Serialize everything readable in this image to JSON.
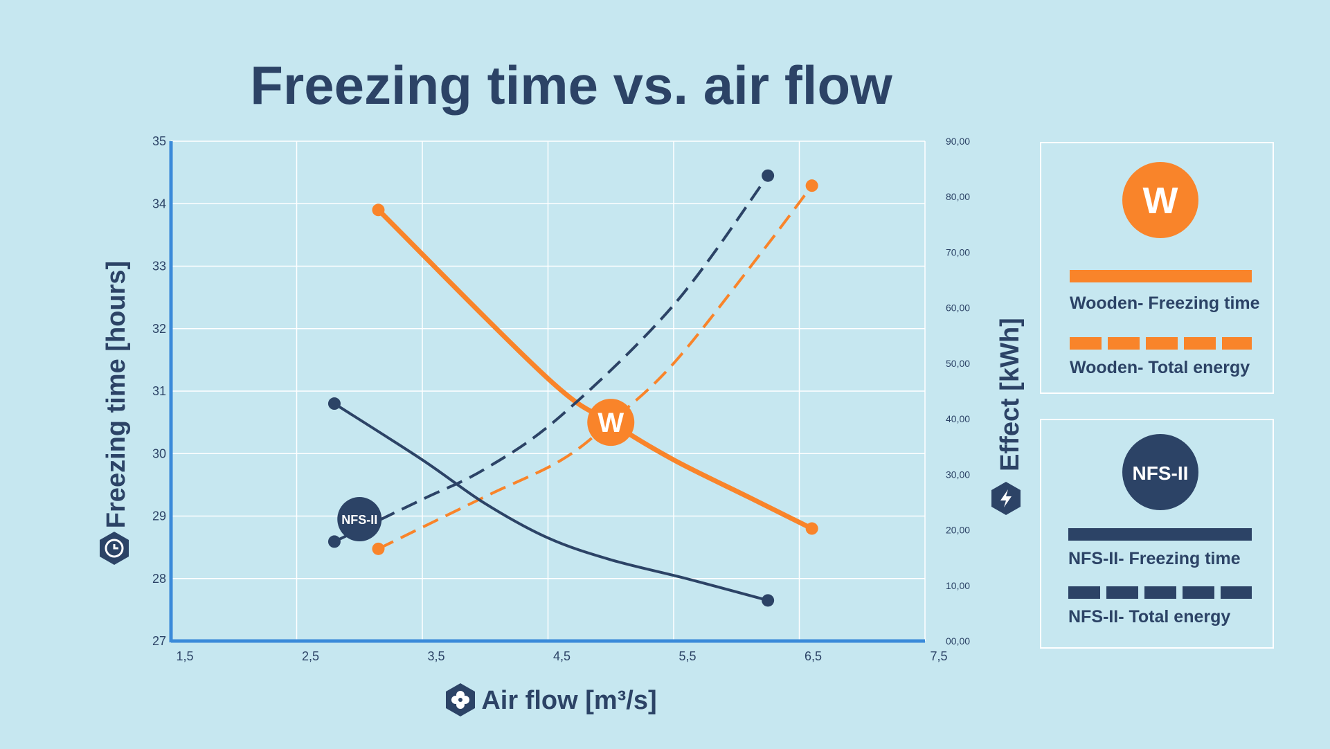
{
  "colors": {
    "background": "#c6e7f0",
    "navy": "#2c4366",
    "orange": "#f9842a",
    "axis_blue": "#3a8ad9",
    "grid": "#ffffff"
  },
  "chart_data": {
    "type": "line",
    "title": "Freezing time vs. air flow",
    "xlabel": "Air flow [m³/s]",
    "ylabel_left": "Freezing time [hours]",
    "ylabel_right": "Effect [kWh]",
    "xlim": [
      1.5,
      7.5
    ],
    "ylim_left": [
      27,
      35
    ],
    "ylim_right": [
      0,
      90
    ],
    "x_ticks": [
      "1,5",
      "2,5",
      "3,5",
      "4,5",
      "5,5",
      "6,5",
      "7,5"
    ],
    "y_left_ticks": [
      "27",
      "28",
      "29",
      "30",
      "31",
      "32",
      "33",
      "34",
      "35"
    ],
    "y_right_ticks": [
      "00,00",
      "10,00",
      "20,00",
      "30,00",
      "40,00",
      "50,00",
      "60,00",
      "70,00",
      "80,00",
      "90,00"
    ],
    "grid": true,
    "series": [
      {
        "name": "Wooden- Freezing time",
        "axis": "left",
        "color": "#f9842a",
        "style": "solid-thick",
        "points": [
          [
            3.15,
            33.9
          ],
          [
            4.5,
            31.2
          ],
          [
            5.0,
            30.5
          ],
          [
            5.5,
            29.9
          ],
          [
            6.1,
            29.3
          ],
          [
            6.6,
            28.8
          ]
        ]
      },
      {
        "name": "Wooden- Total energy",
        "axis": "right",
        "color": "#f9842a",
        "style": "dashed",
        "points": [
          [
            3.15,
            16.6
          ],
          [
            4.0,
            26.0
          ],
          [
            4.6,
            32.5
          ],
          [
            5.0,
            39.5
          ],
          [
            5.5,
            50.0
          ],
          [
            6.2,
            70.0
          ],
          [
            6.6,
            82.0
          ]
        ]
      },
      {
        "name": "NFS-II- Freezing time",
        "axis": "left",
        "color": "#2c4366",
        "style": "solid",
        "points": [
          [
            2.8,
            30.8
          ],
          [
            3.5,
            29.9
          ],
          [
            4.0,
            29.2
          ],
          [
            4.5,
            28.65
          ],
          [
            5.0,
            28.3
          ],
          [
            5.6,
            28.0
          ],
          [
            6.25,
            27.65
          ]
        ]
      },
      {
        "name": "NFS-II- Total energy",
        "axis": "right",
        "color": "#2c4366",
        "style": "dashed",
        "points": [
          [
            2.8,
            17.9
          ],
          [
            3.5,
            25.5
          ],
          [
            4.0,
            31.0
          ],
          [
            4.6,
            40.5
          ],
          [
            5.5,
            60.5
          ],
          [
            6.25,
            83.8
          ]
        ]
      }
    ],
    "markers": [
      {
        "label": "W",
        "x": 5.0,
        "y": 30.5,
        "color": "#f9842a"
      },
      {
        "label": "NFS-II",
        "x": 3.0,
        "y": 28.95,
        "color": "#2c4366"
      }
    ],
    "legend_placement": "right",
    "legend": {
      "groups": [
        {
          "badge": "W",
          "color": "#f9842a",
          "items": [
            {
              "label": "Wooden- Freezing time",
              "style": "solid"
            },
            {
              "label": "Wooden- Total energy",
              "style": "dashed"
            }
          ]
        },
        {
          "badge": "NFS-II",
          "color": "#2c4366",
          "items": [
            {
              "label": "NFS-II- Freezing time",
              "style": "solid"
            },
            {
              "label": "NFS-II- Total energy",
              "style": "dashed"
            }
          ]
        }
      ]
    },
    "icons": {
      "left_axis": "clock-icon",
      "right_axis": "lightning-icon",
      "x_axis": "fan-icon"
    }
  }
}
